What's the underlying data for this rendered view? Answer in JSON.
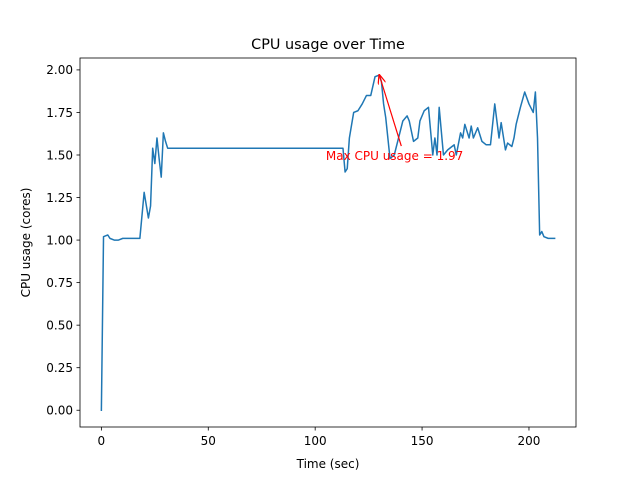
{
  "chart_data": {
    "type": "line",
    "title": "CPU usage over Time",
    "xlabel": "Time (sec)",
    "ylabel": "CPU usage (cores)",
    "xlim": [
      -10,
      222
    ],
    "ylim": [
      -0.0985,
      2.07
    ],
    "xticks": [
      0,
      50,
      100,
      150,
      200
    ],
    "xtick_labels": [
      "0",
      "50",
      "100",
      "150",
      "200"
    ],
    "yticks": [
      0,
      0.25,
      0.5,
      0.75,
      1.0,
      1.25,
      1.5,
      1.75,
      2.0
    ],
    "ytick_labels": [
      "0.00",
      "0.25",
      "0.50",
      "0.75",
      "1.00",
      "1.25",
      "1.50",
      "1.75",
      "2.00"
    ],
    "grid": false,
    "line_color": "#1f77b4",
    "annotation": {
      "text": "Max CPU usage = 1.97",
      "color": "#ff0000",
      "text_x": 105,
      "text_y": 1.47,
      "point_x": 130,
      "point_y": 1.97
    },
    "series": [
      {
        "x": [
          0,
          1,
          3,
          4,
          6,
          8,
          10,
          12,
          14,
          16,
          18,
          20,
          22,
          23,
          24,
          25,
          26,
          27,
          28,
          29,
          30,
          31,
          33,
          34,
          36,
          40,
          50,
          60,
          70,
          80,
          90,
          100,
          110,
          113,
          114,
          115,
          116,
          118,
          120,
          122,
          124,
          126,
          128,
          130,
          131,
          132,
          133,
          135,
          137,
          139,
          141,
          143,
          144,
          146,
          148,
          149,
          151,
          153,
          155,
          156,
          157,
          158,
          160,
          162,
          164,
          165,
          166,
          168,
          169,
          170,
          171,
          172,
          173,
          174,
          176,
          178,
          180,
          182,
          184,
          186,
          187,
          189,
          190,
          192,
          193,
          194,
          196,
          198,
          200,
          202,
          203,
          204,
          205,
          206,
          207,
          209,
          212
        ],
        "y": [
          0.0,
          1.02,
          1.03,
          1.01,
          1.0,
          1.0,
          1.01,
          1.01,
          1.01,
          1.01,
          1.01,
          1.28,
          1.13,
          1.2,
          1.54,
          1.45,
          1.6,
          1.48,
          1.37,
          1.63,
          1.58,
          1.54,
          1.54,
          1.54,
          1.54,
          1.54,
          1.54,
          1.54,
          1.54,
          1.54,
          1.54,
          1.54,
          1.54,
          1.54,
          1.4,
          1.42,
          1.6,
          1.75,
          1.76,
          1.8,
          1.85,
          1.85,
          1.96,
          1.97,
          1.93,
          1.8,
          1.72,
          1.48,
          1.5,
          1.6,
          1.7,
          1.73,
          1.7,
          1.58,
          1.6,
          1.7,
          1.76,
          1.78,
          1.5,
          1.6,
          1.5,
          1.78,
          1.5,
          1.53,
          1.55,
          1.56,
          1.5,
          1.63,
          1.6,
          1.68,
          1.64,
          1.6,
          1.67,
          1.6,
          1.66,
          1.58,
          1.56,
          1.56,
          1.8,
          1.6,
          1.69,
          1.53,
          1.57,
          1.55,
          1.6,
          1.68,
          1.78,
          1.87,
          1.8,
          1.75,
          1.87,
          1.6,
          1.03,
          1.05,
          1.02,
          1.01,
          1.01
        ]
      }
    ]
  }
}
